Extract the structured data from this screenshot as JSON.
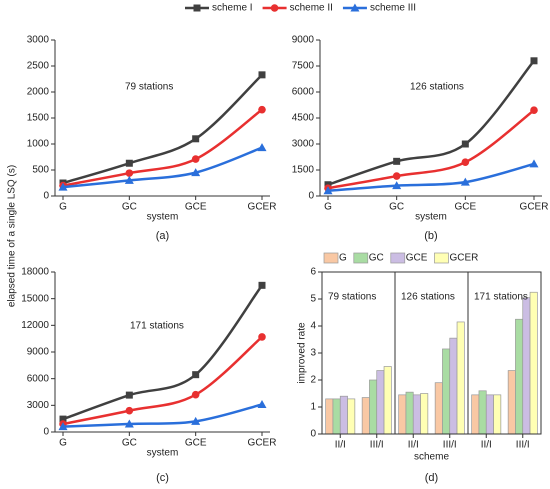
{
  "figure_ylabel": "elapsed time of a single LSQ (s)",
  "chart_data": [
    {
      "type": "line",
      "panel": "(a)",
      "annotation": "79 stations",
      "xlabel": "system",
      "categories": [
        "G",
        "GC",
        "GCE",
        "GCER"
      ],
      "ylim": [
        0,
        3000
      ],
      "yticks": [
        0,
        500,
        1000,
        1500,
        2000,
        2500,
        3000
      ],
      "series": [
        {
          "name": "scheme I",
          "color": "#404040",
          "marker": "square",
          "values": [
            250,
            630,
            1100,
            2330
          ]
        },
        {
          "name": "scheme II",
          "color": "#e83030",
          "marker": "circle",
          "values": [
            200,
            440,
            710,
            1660
          ]
        },
        {
          "name": "scheme III",
          "color": "#2a6fdb",
          "marker": "triangle",
          "values": [
            170,
            300,
            450,
            930
          ]
        }
      ]
    },
    {
      "type": "line",
      "panel": "(b)",
      "annotation": "126 stations",
      "xlabel": "system",
      "categories": [
        "G",
        "GC",
        "GCE",
        "GCER"
      ],
      "ylim": [
        0,
        9000
      ],
      "yticks": [
        0,
        1500,
        3000,
        4500,
        6000,
        7500,
        9000
      ],
      "series": [
        {
          "name": "scheme I",
          "color": "#404040",
          "marker": "square",
          "values": [
            650,
            2000,
            3000,
            7800
          ]
        },
        {
          "name": "scheme II",
          "color": "#e83030",
          "marker": "circle",
          "values": [
            450,
            1150,
            1950,
            4950
          ]
        },
        {
          "name": "scheme III",
          "color": "#2a6fdb",
          "marker": "triangle",
          "values": [
            300,
            600,
            800,
            1850
          ]
        }
      ]
    },
    {
      "type": "line",
      "panel": "(c)",
      "annotation": "171 stations",
      "xlabel": "system",
      "categories": [
        "G",
        "GC",
        "GCE",
        "GCER"
      ],
      "ylim": [
        0,
        18000
      ],
      "yticks": [
        0,
        3000,
        6000,
        9000,
        12000,
        15000,
        18000
      ],
      "series": [
        {
          "name": "scheme I",
          "color": "#404040",
          "marker": "square",
          "values": [
            1450,
            4150,
            6450,
            16500
          ]
        },
        {
          "name": "scheme II",
          "color": "#e83030",
          "marker": "circle",
          "values": [
            900,
            2400,
            4200,
            10700
          ]
        },
        {
          "name": "scheme III",
          "color": "#2a6fdb",
          "marker": "triangle",
          "values": [
            600,
            900,
            1200,
            3100
          ]
        }
      ]
    },
    {
      "type": "bar",
      "panel": "(d)",
      "xlabel": "scheme",
      "ylabel": "improved rate",
      "annotations": [
        "79 stations",
        "126 stations",
        "171 stations"
      ],
      "categories": [
        "II/I",
        "III/I",
        "II/I",
        "III/I",
        "II/I",
        "III/I"
      ],
      "ylim": [
        0,
        6
      ],
      "yticks": [
        0,
        1,
        2,
        3,
        4,
        5,
        6
      ],
      "series": [
        {
          "name": "G",
          "color": "#f9c8a4",
          "values": [
            1.3,
            1.35,
            1.45,
            1.9,
            1.45,
            2.35
          ]
        },
        {
          "name": "GC",
          "color": "#a9dca3",
          "values": [
            1.3,
            2.0,
            1.55,
            3.15,
            1.6,
            4.25
          ]
        },
        {
          "name": "GCE",
          "color": "#cbbde3",
          "values": [
            1.4,
            2.35,
            1.45,
            3.55,
            1.45,
            5.05
          ]
        },
        {
          "name": "GCER",
          "color": "#ffffb4",
          "values": [
            1.3,
            2.5,
            1.5,
            4.15,
            1.45,
            5.25
          ]
        }
      ]
    }
  ]
}
